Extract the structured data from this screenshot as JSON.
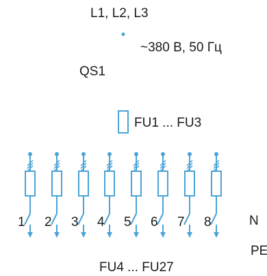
{
  "colors": {
    "wire": "#4aa3d6",
    "text": "#1a1a1a"
  },
  "labels": {
    "phases": "L1, L2, L3",
    "supply": "~380 В, 50 Гц",
    "breaker": "QS1",
    "main_fuses": "FU1 ... FU3",
    "neutral": "N",
    "protective_earth": "PE",
    "group_fuses": "FU4 ... FU27"
  },
  "circuits": [
    "1",
    "2",
    "3",
    "4",
    "5",
    "6",
    "7",
    "8"
  ]
}
